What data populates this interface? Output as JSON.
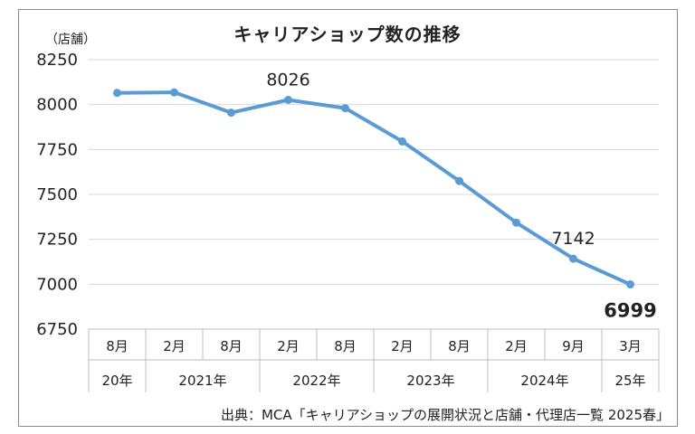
{
  "chart_data": {
    "type": "line",
    "title": "キャリアショップ数の推移",
    "unit_label": "（店舗）",
    "source": "出典：MCA「キャリアショップの展開状況と店舗・代理店一覧 2025春」",
    "ylim": [
      6750,
      8250
    ],
    "yticks": [
      "8250",
      "8000",
      "7750",
      "7500",
      "7250",
      "7000",
      "6750"
    ],
    "grid": true,
    "color": "#5b9bd5",
    "categories": [
      "8月",
      "2月",
      "8月",
      "2月",
      "8月",
      "2月",
      "8月",
      "2月",
      "9月",
      "3月"
    ],
    "year_groups": [
      {
        "label": "20年",
        "span": 1
      },
      {
        "label": "2021年",
        "span": 2
      },
      {
        "label": "2022年",
        "span": 2
      },
      {
        "label": "2023年",
        "span": 2
      },
      {
        "label": "2024年",
        "span": 2
      },
      {
        "label": "25年",
        "span": 1
      }
    ],
    "series": [
      {
        "values": [
          8065,
          8068,
          7955,
          8026,
          7980,
          7795,
          7575,
          7343,
          7142,
          6999
        ]
      }
    ],
    "data_labels": [
      {
        "index": 3,
        "text": "8026",
        "bold": false
      },
      {
        "index": 8,
        "text": "7142",
        "bold": false
      },
      {
        "index": 9,
        "text": "6999",
        "bold": true
      }
    ]
  }
}
